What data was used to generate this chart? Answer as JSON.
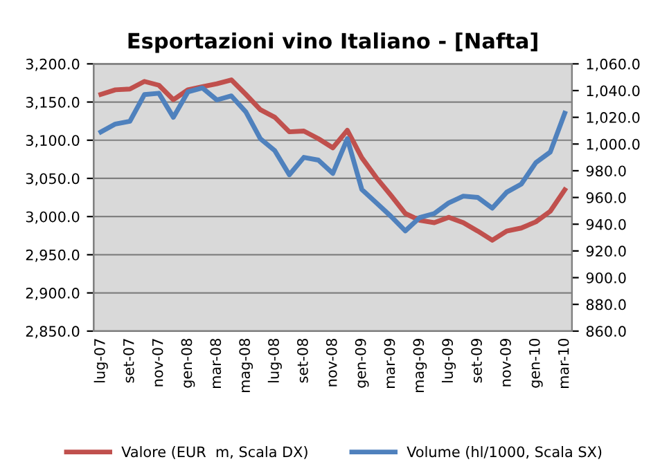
{
  "chart_data": {
    "type": "line",
    "title": "Esportazioni vino Italiano - [Nafta]",
    "categories": [
      "lug-07",
      null,
      "set-07",
      null,
      "nov-07",
      null,
      "gen-08",
      null,
      "mar-08",
      null,
      "mag-08",
      null,
      "lug-08",
      null,
      "set-08",
      null,
      "nov-08",
      null,
      "gen-09",
      null,
      "mar-09",
      null,
      "mag-09",
      null,
      "lug-09",
      null,
      "set-09",
      null,
      "nov-09",
      null,
      "gen-10",
      null,
      "mar-10"
    ],
    "series": [
      {
        "name": "Valore (EUR  m, Scala DX)",
        "color": "#c0504d",
        "axis": "y",
        "values": [
          3160,
          3166,
          3167,
          3177,
          3172,
          3153,
          3166,
          3170,
          3174,
          3179,
          3160,
          3140,
          3130,
          3111,
          3112,
          3102,
          3090,
          3113,
          3077,
          3051,
          3028,
          3004,
          2995,
          2992,
          2999,
          2992,
          2981,
          2969,
          2981,
          2985,
          2993,
          3007,
          3035
        ]
      },
      {
        "name": "Volume (hl/1000, Scala SX)",
        "color": "#4f81bd",
        "axis": "y2",
        "values": [
          1009,
          1015,
          1017,
          1037,
          1038,
          1020,
          1039,
          1042,
          1033,
          1036,
          1024,
          1004,
          995,
          977,
          990,
          988,
          978,
          1004,
          966,
          956,
          946,
          935,
          945,
          948,
          956,
          961,
          960,
          952,
          964,
          970,
          986,
          994,
          1023
        ]
      }
    ],
    "ylim": [
      2850,
      3200
    ],
    "yticks": [
      {
        "value": 2850,
        "label": "2,850.0"
      },
      {
        "value": 2900,
        "label": "2,900.0"
      },
      {
        "value": 2950,
        "label": "2,950.0"
      },
      {
        "value": 3000,
        "label": "3,000.0"
      },
      {
        "value": 3050,
        "label": "3,050.0"
      },
      {
        "value": 3100,
        "label": "3,100.0"
      },
      {
        "value": 3150,
        "label": "3,150.0"
      },
      {
        "value": 3200,
        "label": "3,200.0"
      }
    ],
    "y2lim": [
      860,
      1060
    ],
    "y2ticks": [
      {
        "value": 860,
        "label": "860.0"
      },
      {
        "value": 880,
        "label": "880.0"
      },
      {
        "value": 900,
        "label": "900.0"
      },
      {
        "value": 920,
        "label": "920.0"
      },
      {
        "value": 940,
        "label": "940.0"
      },
      {
        "value": 960,
        "label": "960.0"
      },
      {
        "value": 980,
        "label": "980.0"
      },
      {
        "value": 1000,
        "label": "1,000.0"
      },
      {
        "value": 1020,
        "label": "1,020.0"
      },
      {
        "value": 1040,
        "label": "1,040.0"
      },
      {
        "value": 1060,
        "label": "1,060.0"
      }
    ],
    "grid": "y",
    "legend": "bottom",
    "marker": "none",
    "line_style": "solid"
  }
}
